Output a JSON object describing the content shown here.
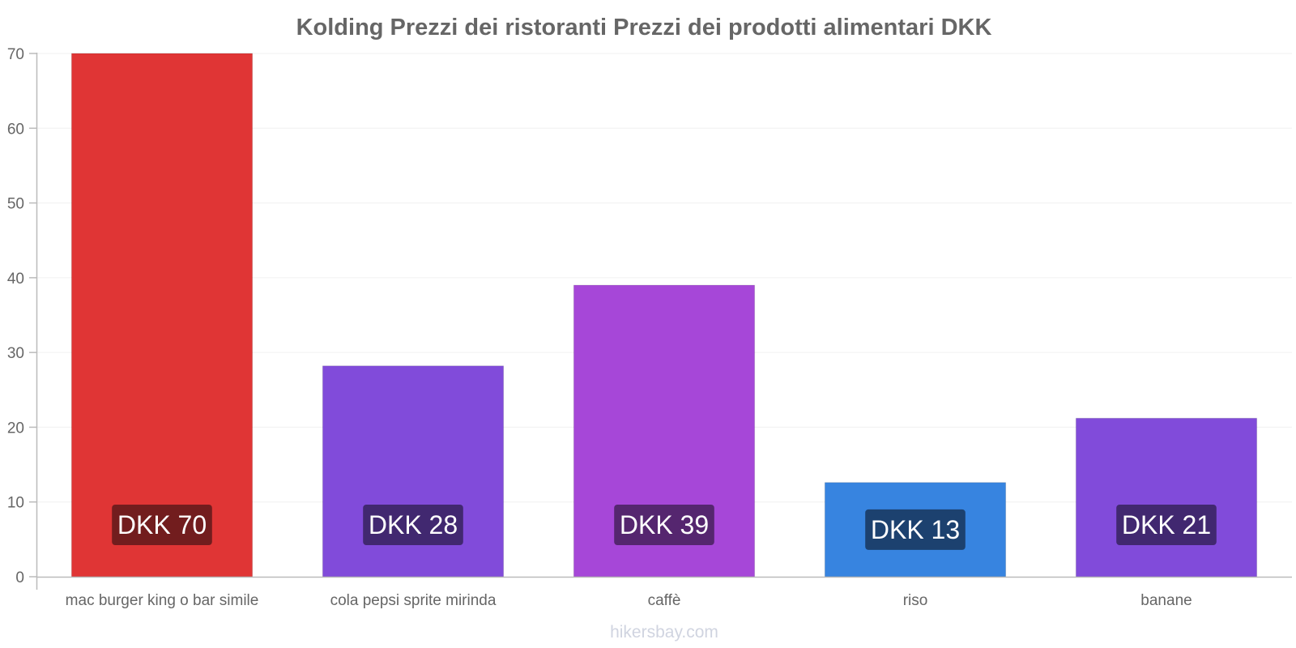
{
  "chart_data": {
    "type": "bar",
    "title": "Kolding Prezzi dei ristoranti Prezzi dei prodotti alimentari DKK",
    "xlabel": "",
    "ylabel": "",
    "ylim": [
      0,
      70
    ],
    "yticks": [
      "0",
      "10",
      "20",
      "30",
      "40",
      "50",
      "60",
      "70"
    ],
    "grid": true,
    "categories": [
      "mac burger king o bar simile",
      "cola pepsi sprite mirinda",
      "caffè",
      "riso",
      "banane"
    ],
    "values": [
      70,
      28.2,
      39,
      12.6,
      21.2
    ],
    "data_labels": [
      "DKK 70",
      "DKK 28",
      "DKK 39",
      "DKK 13",
      "DKK 21"
    ],
    "bar_colors": [
      "#e03535",
      "#814bda",
      "#a647d8",
      "#3784e0",
      "#814bda"
    ],
    "label_bg_colors": [
      "#721d1e",
      "#412870",
      "#55266f",
      "#1c416f",
      "#412870"
    ]
  },
  "footer": "hikersbay.com"
}
